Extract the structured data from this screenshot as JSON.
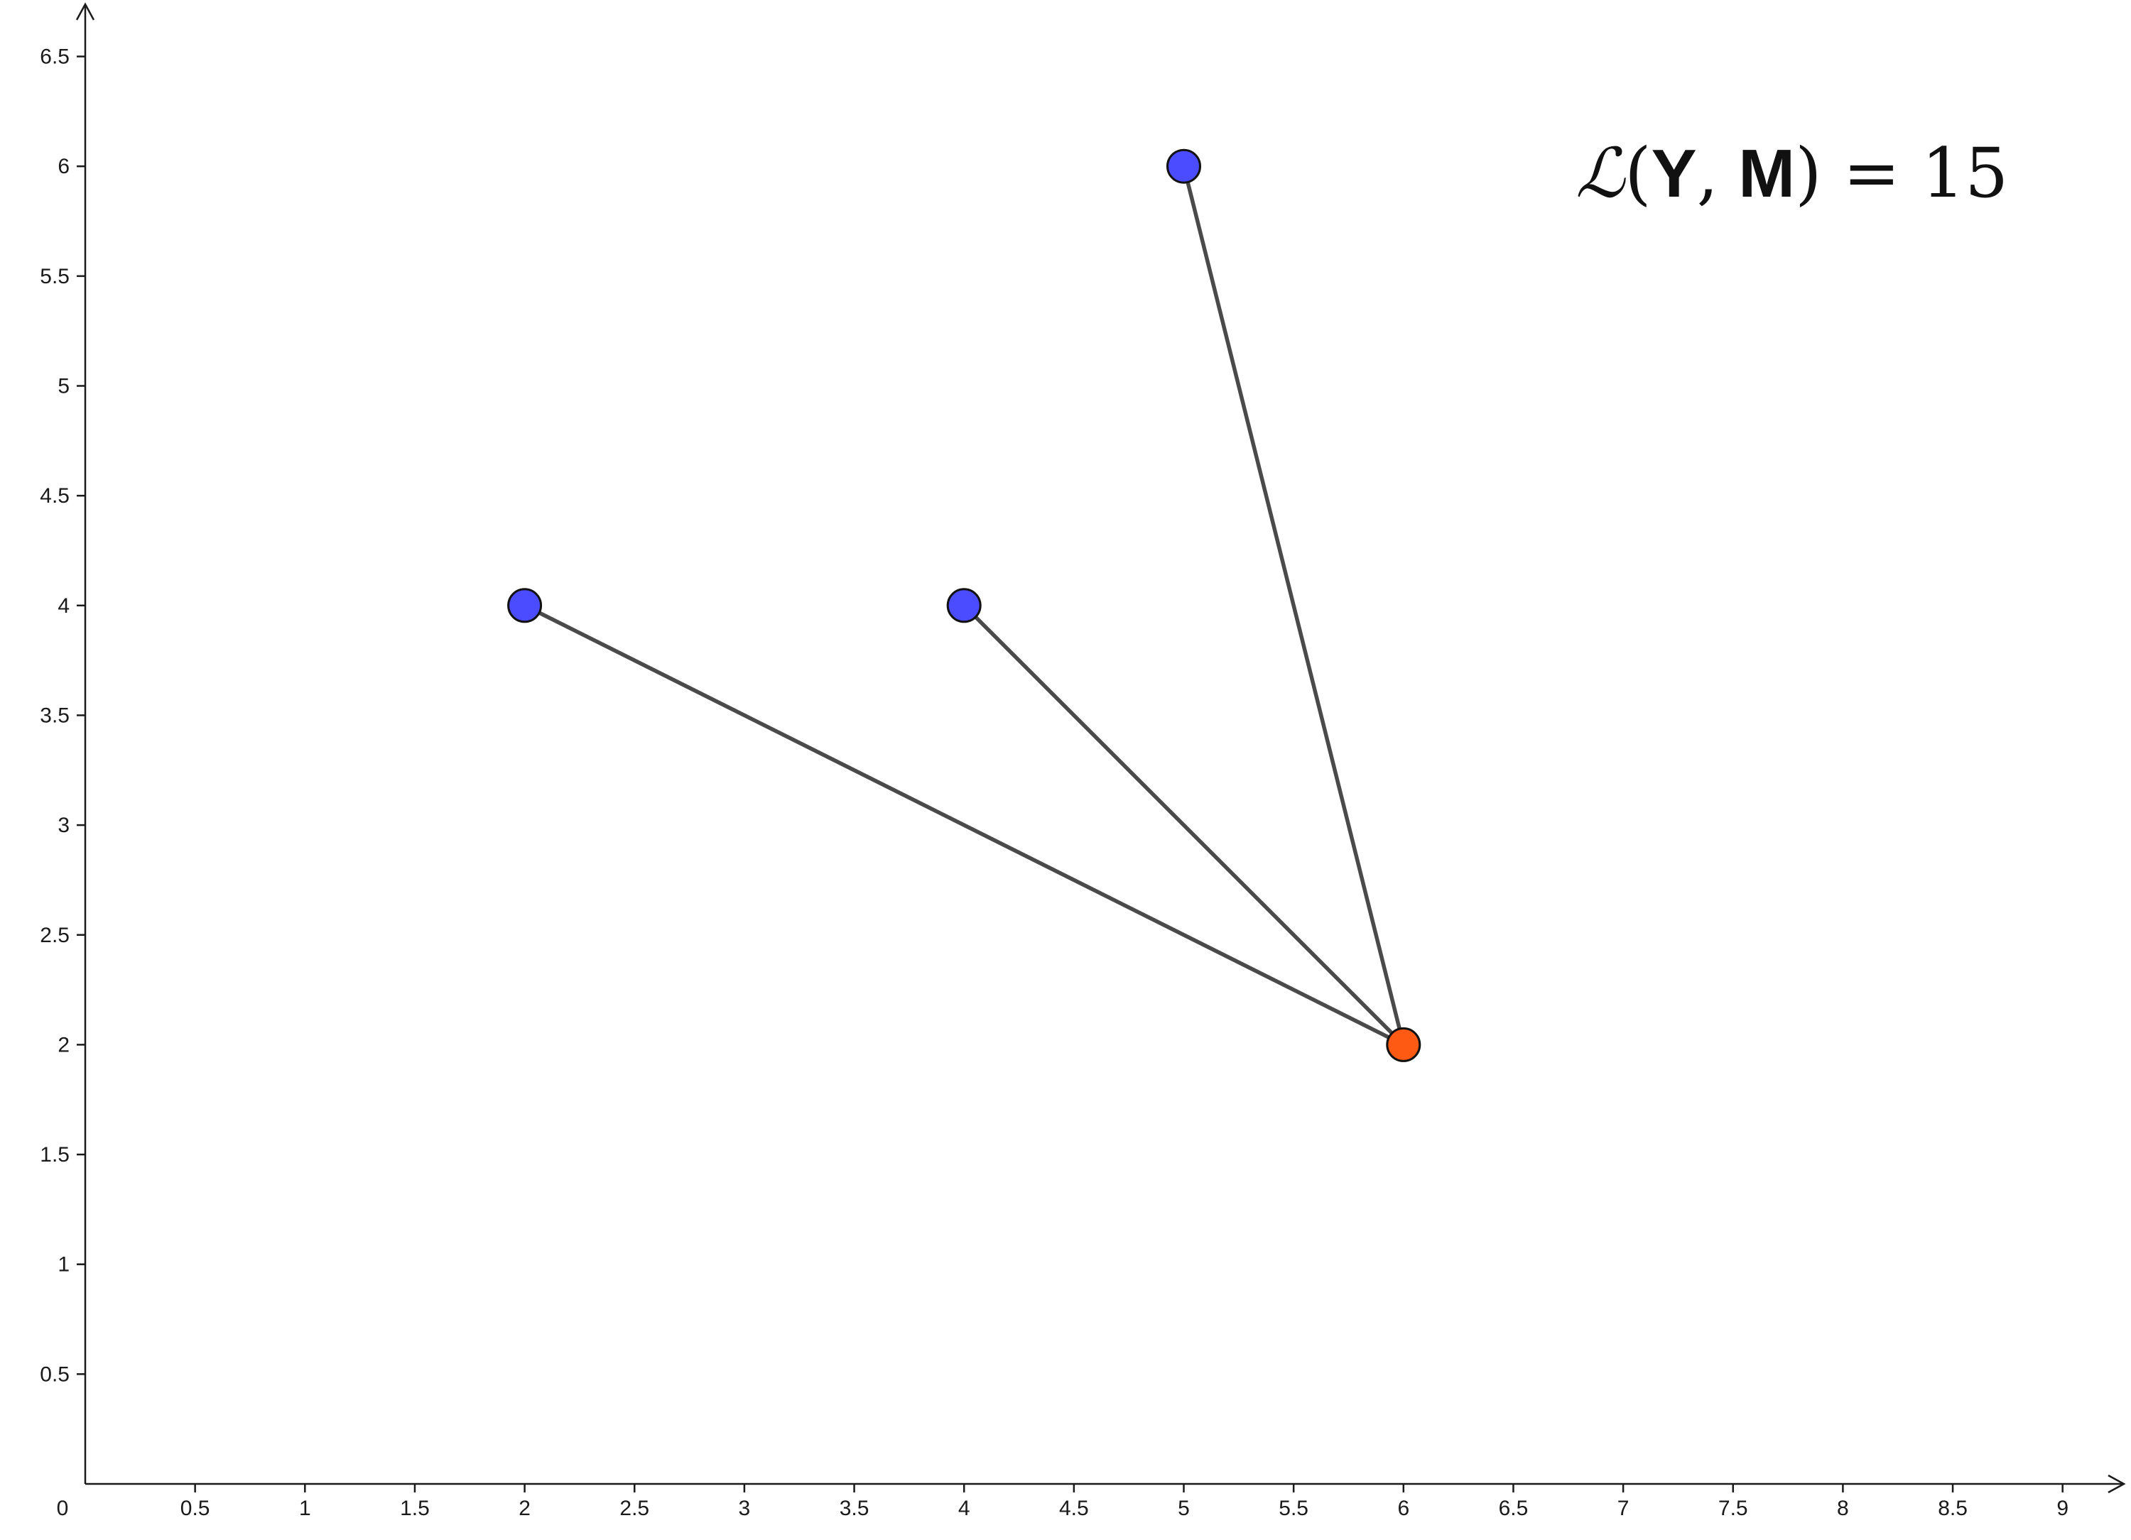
{
  "formula": {
    "lhs_symbol": "ℒ",
    "open_paren": "(",
    "arg1": "Y",
    "comma": ",",
    "arg2": "M",
    "close_paren": ")",
    "equals": "=",
    "value": "15"
  },
  "chart_data": {
    "type": "scatter",
    "xlim": [
      0,
      9.25
    ],
    "ylim": [
      0,
      6.75
    ],
    "x_ticks": [
      0.5,
      1,
      1.5,
      2,
      2.5,
      3,
      3.5,
      4,
      4.5,
      5,
      5.5,
      6,
      6.5,
      7,
      7.5,
      8,
      8.5,
      9
    ],
    "y_ticks": [
      0.5,
      1,
      1.5,
      2,
      2.5,
      3,
      3.5,
      4,
      4.5,
      5,
      5.5,
      6,
      6.5
    ],
    "origin_label": "0",
    "grid": false,
    "center": {
      "x": 6,
      "y": 2,
      "color": "#ff5a14"
    },
    "points": [
      {
        "x": 2,
        "y": 4,
        "color": "#4b4bff"
      },
      {
        "x": 4,
        "y": 4,
        "color": "#4b4bff"
      },
      {
        "x": 5,
        "y": 6,
        "color": "#4b4bff"
      }
    ],
    "segment_color": "#4a4a4a"
  }
}
